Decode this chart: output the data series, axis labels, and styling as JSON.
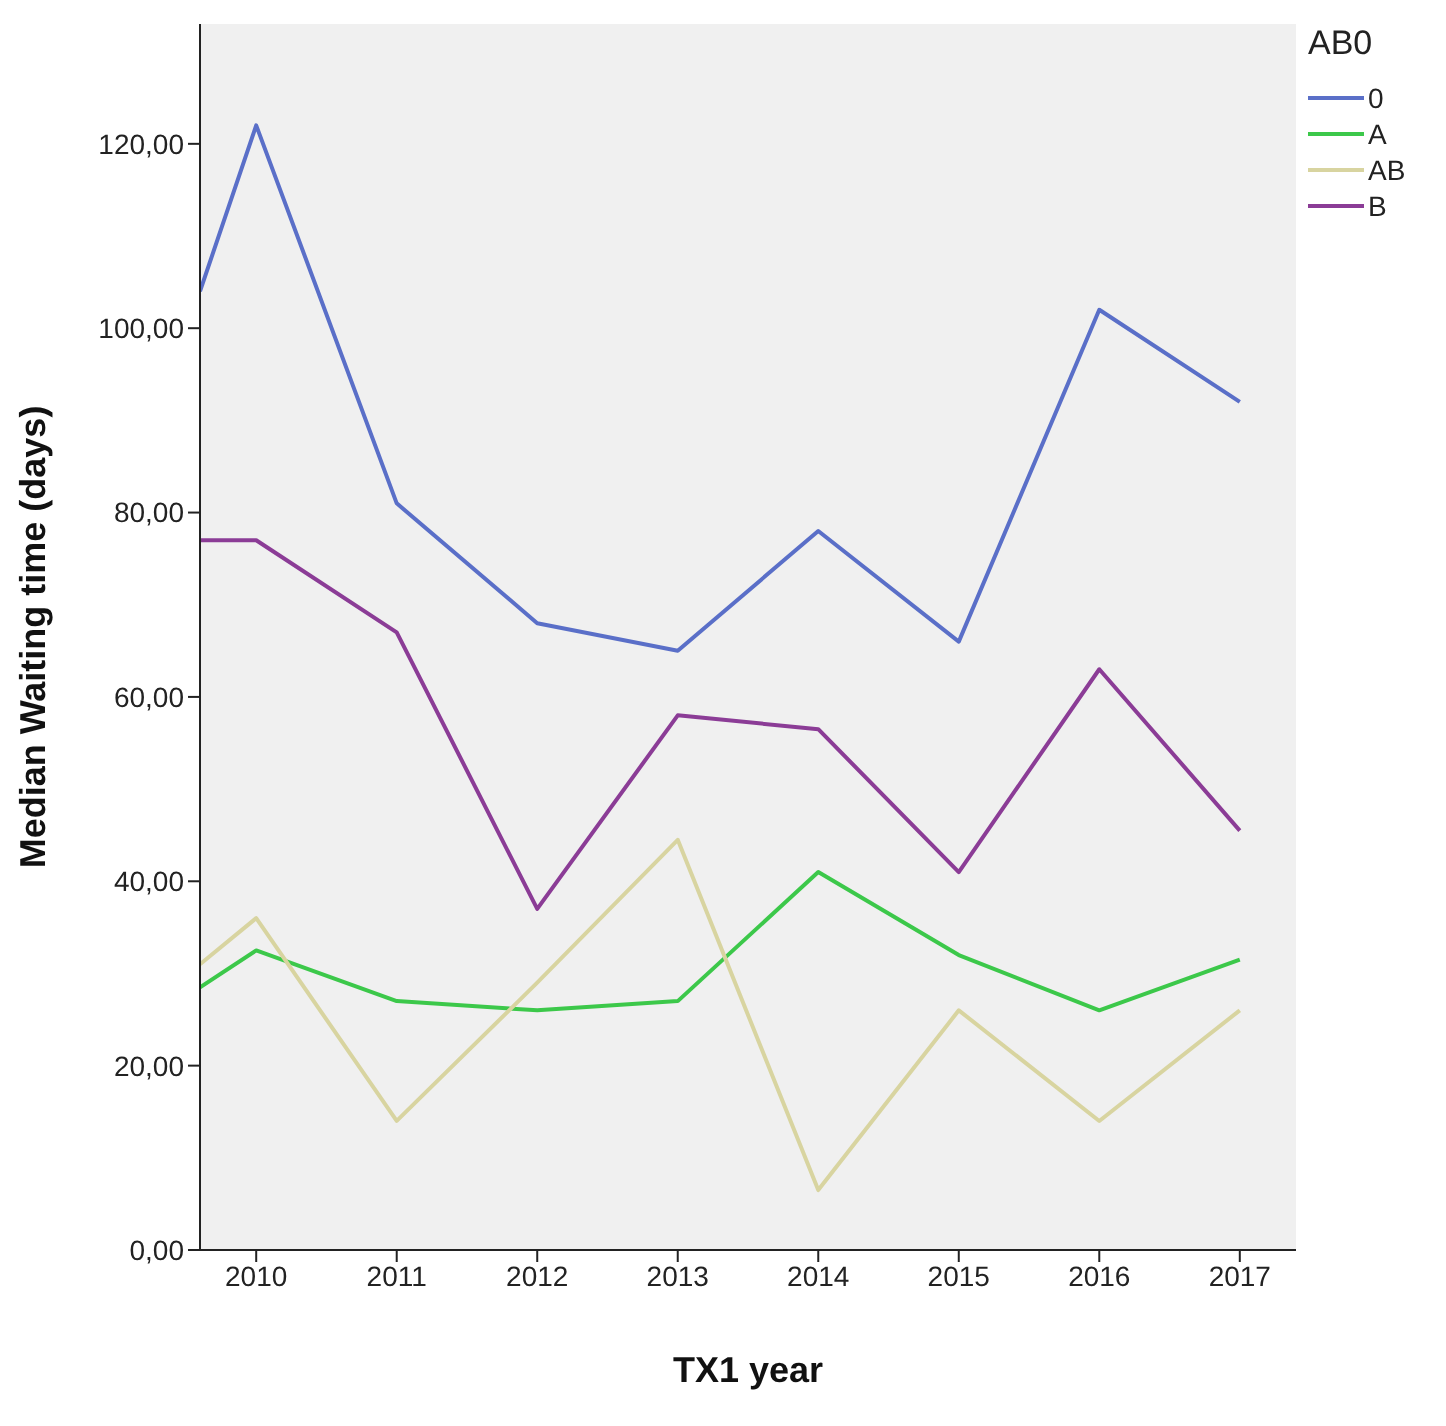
{
  "chart_data": {
    "type": "line",
    "xlabel": "TX1 year",
    "ylabel": "Median Waiting time (days)",
    "legend_title": "AB0",
    "legend": "top right",
    "grid": false,
    "marker": "none",
    "line_style": "solid",
    "x": [
      2009.6,
      2010,
      2011,
      2012,
      2013,
      2014,
      2015,
      2016,
      2017
    ],
    "xlim": [
      2009.6,
      2017.4
    ],
    "xticks": [
      2010,
      2011,
      2012,
      2013,
      2014,
      2015,
      2016,
      2017
    ],
    "ylim": [
      0,
      133
    ],
    "yticks": [
      {
        "value": 0,
        "label": "0,00"
      },
      {
        "value": 20,
        "label": "20,00"
      },
      {
        "value": 40,
        "label": "40,00"
      },
      {
        "value": 60,
        "label": "60,00"
      },
      {
        "value": 80,
        "label": "80,00"
      },
      {
        "value": 100,
        "label": "100,00"
      },
      {
        "value": 120,
        "label": "120,00"
      }
    ],
    "series": [
      {
        "name": "0",
        "color": "#5a6fc8",
        "values": [
          104,
          122,
          81,
          68,
          65,
          78,
          66,
          102,
          92
        ]
      },
      {
        "name": "A",
        "color": "#3cc84a",
        "values": [
          28.5,
          32.5,
          27,
          26,
          27,
          41,
          32,
          26,
          31.5
        ]
      },
      {
        "name": "AB",
        "color": "#d8d4a0",
        "values": [
          31,
          36,
          14,
          29,
          44.5,
          6.5,
          26,
          14,
          26
        ]
      },
      {
        "name": "B",
        "color": "#8b3c96",
        "values": [
          77,
          77,
          67,
          37,
          58,
          56.5,
          41,
          63,
          45.5
        ]
      }
    ]
  }
}
